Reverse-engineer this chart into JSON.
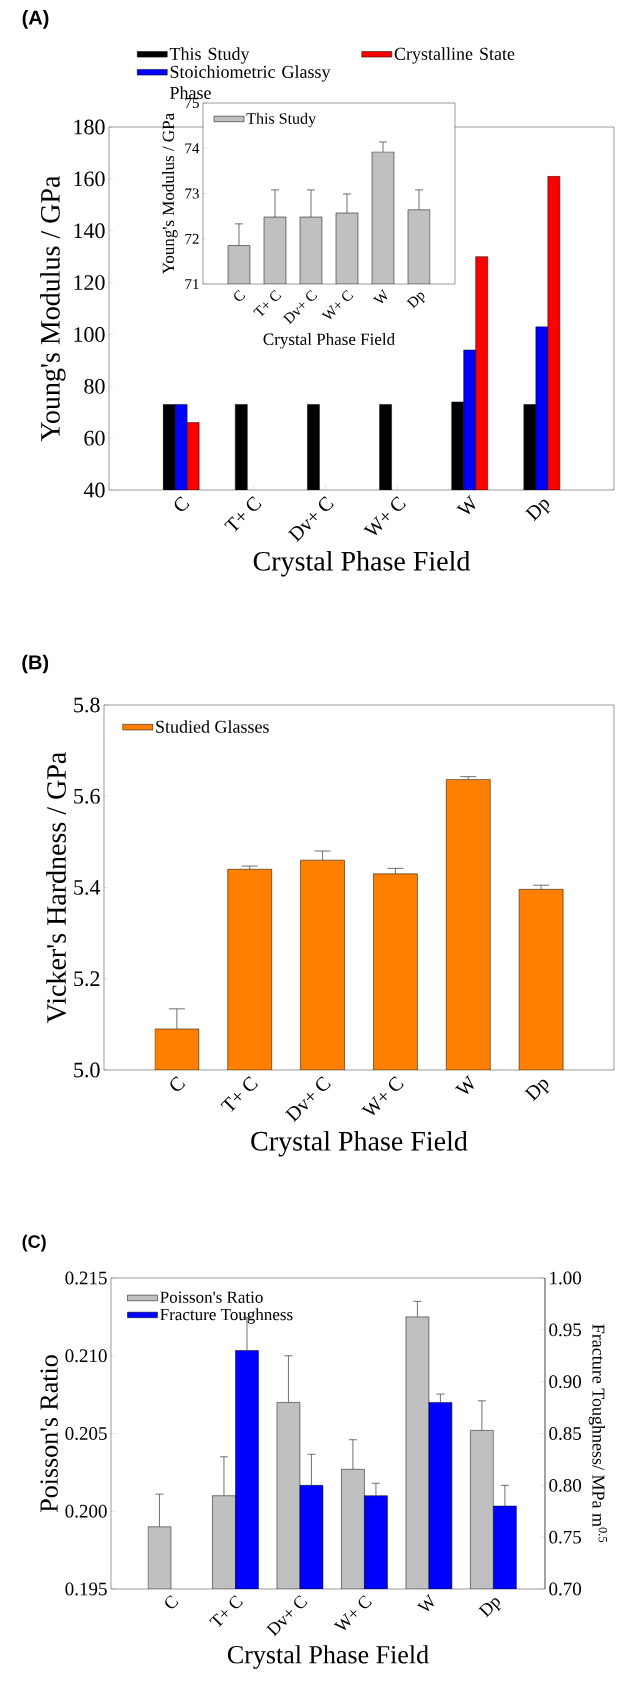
{
  "chart_data": [
    {
      "type": "bar",
      "title": "(A)",
      "xlabel": "Crystal Phase Field",
      "ylabel": "Young's Modulus / GPa",
      "categories": [
        "C",
        "T+ C",
        "Dv+ C",
        "W+ C",
        "W",
        "Dp"
      ],
      "ylim": [
        40,
        180
      ],
      "yticks": [
        40,
        60,
        80,
        100,
        120,
        140,
        160,
        180
      ],
      "legend": "top",
      "series": [
        {
          "name": "This Study",
          "color": "#000000",
          "values": [
            73,
            73,
            73,
            73,
            74,
            73
          ]
        },
        {
          "name": "Stoichiometric Glassy Phase",
          "color": "#0000ff",
          "values": [
            73,
            null,
            null,
            null,
            94,
            103
          ]
        },
        {
          "name": "Crystalline State",
          "color": "#ff0000",
          "values": [
            66,
            null,
            null,
            null,
            130,
            161
          ]
        }
      ]
    },
    {
      "type": "bar",
      "xlabel": "Crystal Phase Field",
      "ylabel": "Young's Modulus / GPa",
      "categories": [
        "C",
        "T+ C",
        "Dv+ C",
        "W+ C",
        "W",
        "Dp"
      ],
      "ylim": [
        71,
        75
      ],
      "yticks": [
        71,
        72,
        73,
        74,
        75
      ],
      "legend": "top left",
      "series": [
        {
          "name": "This Study",
          "color": "#c0c0c0",
          "values": [
            71.85,
            72.48,
            72.48,
            72.57,
            73.92,
            72.64
          ],
          "errors": [
            [
              71.85,
              72.33
            ],
            [
              72.48,
              73.08
            ],
            [
              72.48,
              73.08
            ],
            [
              72.57,
              72.99
            ],
            [
              73.92,
              74.14
            ],
            [
              72.64,
              73.08
            ]
          ]
        }
      ]
    },
    {
      "type": "bar",
      "title": "(B)",
      "xlabel": "Crystal Phase Field",
      "ylabel": "Vicker's Hardness / GPa",
      "categories": [
        "C",
        "T+ C",
        "Dv+ C",
        "W+ C",
        "W",
        "Dp"
      ],
      "ylim": [
        5.0,
        5.8
      ],
      "yticks": [
        {
          "value": 5.0,
          "label": "5.0"
        },
        5.2,
        5.4,
        5.6,
        5.8
      ],
      "legend": "top left",
      "series": [
        {
          "name": "Studied Glasses",
          "color": "#ff8000",
          "values": [
            5.09,
            5.44,
            5.46,
            5.43,
            5.637,
            5.396
          ],
          "errors": [
            [
              5.09,
              5.134
            ],
            [
              5.44,
              5.447
            ],
            [
              5.46,
              5.48
            ],
            [
              5.43,
              5.442
            ],
            [
              5.637,
              5.643
            ],
            [
              5.396,
              5.405
            ]
          ]
        }
      ]
    },
    {
      "type": "bar",
      "title": "(C)",
      "xlabel": "Crystal Phase Field",
      "ylabel": "Poisson's Ratio",
      "y2label": "Fracture Toughness/ MPa m$^{0.5}$",
      "categories": [
        "C",
        "T+ C",
        "Dv+ C",
        "W+ C",
        "W",
        "Dp"
      ],
      "ylim": [
        0.195,
        0.215
      ],
      "yticks": [
        0.195,
        {
          "value": 0.2,
          "label": "0.200"
        },
        0.205,
        {
          "value": 0.21,
          "label": "0.210"
        },
        0.215
      ],
      "y2lim": [
        0.7,
        1.0
      ],
      "y2ticks": [
        {
          "value": 0.7,
          "label": "0.70"
        },
        0.75,
        {
          "value": 0.8,
          "label": "0.80"
        },
        0.85,
        {
          "value": 0.9,
          "label": "0.90"
        },
        0.95,
        {
          "value": 1.0,
          "label": "1.00"
        }
      ],
      "legend": "top left",
      "series": [
        {
          "name": "Poisson's Ratio",
          "color": "#c0c0c0",
          "values": [
            0.199,
            0.201,
            0.207,
            0.2027,
            0.2125,
            0.2052
          ],
          "errors": [
            [
              0.199,
              0.2011
            ],
            [
              0.201,
              0.2035
            ],
            [
              0.207,
              0.21
            ],
            [
              0.2027,
              0.2046
            ],
            [
              0.2125,
              0.2135
            ],
            [
              0.2052,
              0.2071
            ]
          ]
        },
        {
          "name": "Fracture Toughness",
          "color": "#0000ff",
          "axis": "y2",
          "values": [
            null,
            0.93,
            0.8,
            0.79,
            0.88,
            0.78
          ],
          "errors": [
            null,
            [
              0.93,
              0.962
            ],
            [
              0.8,
              0.83
            ],
            [
              0.79,
              0.802
            ],
            [
              0.88,
              0.888
            ],
            [
              0.78,
              0.8
            ]
          ]
        }
      ]
    }
  ]
}
